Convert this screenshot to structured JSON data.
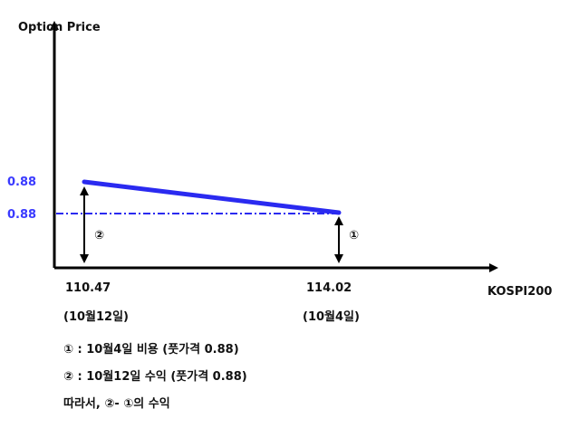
{
  "chart_data": {
    "type": "line",
    "ylabel": "Option Price",
    "xlabel": "KOSPI200",
    "y_ticks": [
      "0.88",
      "0.88"
    ],
    "x_points": [
      {
        "value": "110.47",
        "date": "(10월12일)"
      },
      {
        "value": "114.02",
        "date": "(10월4일)"
      }
    ],
    "series": [
      {
        "values": [
          0.88,
          0.88
        ],
        "color": "#2a2af0"
      }
    ],
    "reference_line": {
      "value": 0.88,
      "style": "dash-dot",
      "color": "#2a2af0"
    },
    "markers": [
      "②",
      "①"
    ]
  },
  "notes": [
    "① : 10월4일 비용 (풋가격 0.88)",
    "② : 10월12일 수익 (풋가격 0.88)",
    "따라서, ②- ①의 수익"
  ]
}
